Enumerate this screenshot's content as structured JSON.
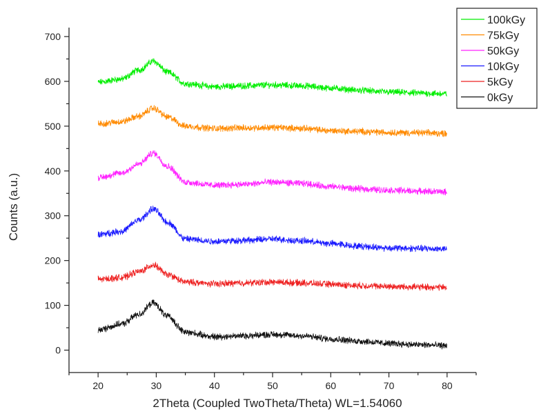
{
  "chart_data": {
    "type": "line",
    "title": "",
    "xlabel": "2Theta (Coupled TwoTheta/Theta) WL=1.54060",
    "ylabel": "Counts (a.u.)",
    "xlim": [
      15,
      85
    ],
    "ylim": [
      -50,
      720
    ],
    "xticks": [
      20,
      30,
      40,
      50,
      60,
      70,
      80
    ],
    "yticks": [
      0,
      100,
      200,
      300,
      400,
      500,
      600,
      700
    ],
    "grid": false,
    "legend_position": "top-right",
    "series": [
      {
        "name": "100kGy",
        "color": "#00ee00",
        "x": [
          20,
          24,
          27,
          29.5,
          32,
          35,
          40,
          45,
          50,
          55,
          60,
          65,
          70,
          75,
          80
        ],
        "y": [
          598,
          605,
          625,
          645,
          620,
          595,
          588,
          590,
          592,
          590,
          585,
          580,
          576,
          574,
          572
        ]
      },
      {
        "name": "75kGy",
        "color": "#ff8a00",
        "x": [
          20,
          24,
          27,
          29.5,
          32,
          35,
          40,
          45,
          50,
          55,
          60,
          65,
          70,
          75,
          80
        ],
        "y": [
          505,
          510,
          522,
          540,
          520,
          500,
          495,
          496,
          497,
          495,
          490,
          488,
          486,
          485,
          484
        ]
      },
      {
        "name": "50kGy",
        "color": "#ff22ff",
        "x": [
          20,
          24,
          27,
          29.5,
          32,
          35,
          40,
          45,
          50,
          55,
          60,
          65,
          70,
          75,
          80
        ],
        "y": [
          385,
          395,
          415,
          440,
          410,
          375,
          368,
          370,
          375,
          372,
          365,
          360,
          357,
          355,
          353
        ]
      },
      {
        "name": "10kGy",
        "color": "#1a1aff",
        "x": [
          20,
          24,
          27,
          29.5,
          32,
          35,
          40,
          45,
          50,
          55,
          60,
          65,
          70,
          75,
          80
        ],
        "y": [
          258,
          265,
          290,
          315,
          285,
          248,
          243,
          245,
          248,
          244,
          238,
          232,
          228,
          227,
          226
        ]
      },
      {
        "name": "5kGy",
        "color": "#ee2222",
        "x": [
          20,
          24,
          27,
          29.5,
          32,
          35,
          40,
          45,
          50,
          55,
          60,
          65,
          70,
          75,
          80
        ],
        "y": [
          158,
          162,
          175,
          190,
          168,
          152,
          148,
          150,
          152,
          150,
          147,
          144,
          142,
          141,
          140
        ]
      },
      {
        "name": "0kGy",
        "color": "#111111",
        "x": [
          20,
          24,
          27,
          29.5,
          32,
          35,
          40,
          45,
          50,
          55,
          60,
          65,
          70,
          75,
          80
        ],
        "y": [
          45,
          58,
          80,
          105,
          75,
          40,
          30,
          32,
          35,
          32,
          25,
          20,
          15,
          12,
          10
        ]
      }
    ]
  }
}
